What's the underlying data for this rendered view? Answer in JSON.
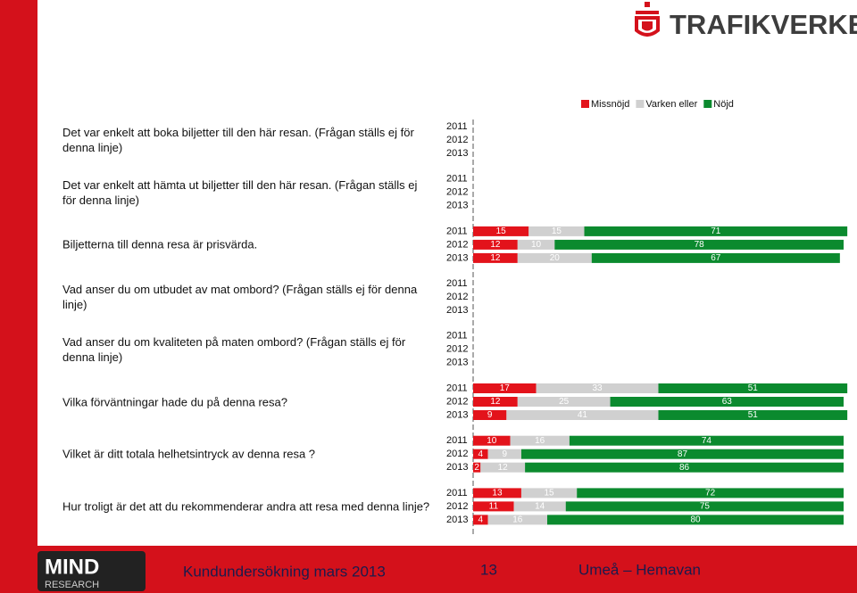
{
  "logo": "TRAFIKVERKET",
  "chart_data": {
    "type": "stacked-bar-horizontal",
    "questions": [
      "Det var enkelt att boka biljetter till den här resan. (Frågan ställs ej för denna linje)",
      "Det var enkelt att hämta ut biljetter till den här resan. (Frågan ställs ej för denna linje)",
      "Biljetterna till denna resa är prisvärda.",
      "Vad anser du om utbudet av mat ombord? (Frågan ställs ej för denna linje)",
      "Vad anser du om kvaliteten på maten ombord? (Frågan ställs ej för denna linje)",
      "Vilka förväntningar hade du på denna resa?",
      "Vilket är ditt totala helhetsintryck av denna resa ?",
      "Hur troligt är det att du rekommenderar andra att resa med denna linje?"
    ],
    "years": [
      "2011",
      "2012",
      "2013"
    ],
    "xlim": [
      0,
      100
    ],
    "series": [
      {
        "name": "Missnöjd",
        "color": "#e3131b",
        "values": [
          null,
          null,
          null,
          null,
          null,
          null,
          15,
          12,
          12,
          null,
          null,
          null,
          null,
          null,
          null,
          17,
          12,
          9,
          10,
          4,
          2,
          13,
          11,
          4
        ]
      },
      {
        "name": "Varken eller",
        "color": "#d0d0d0",
        "values": [
          null,
          null,
          null,
          null,
          null,
          null,
          15,
          10,
          20,
          null,
          null,
          null,
          null,
          null,
          null,
          33,
          25,
          41,
          16,
          9,
          12,
          15,
          14,
          16
        ]
      },
      {
        "name": "Nöjd",
        "color": "#0b8a2e",
        "values": [
          null,
          null,
          null,
          null,
          null,
          null,
          71,
          78,
          67,
          null,
          null,
          null,
          null,
          null,
          null,
          51,
          63,
          51,
          74,
          87,
          86,
          72,
          75,
          80
        ]
      }
    ]
  },
  "footer": {
    "brand": "MIND",
    "brand_sub": "RESEARCH",
    "text": "Kundundersökning mars 2013",
    "page": "13",
    "route": "Umeå – Hemavan"
  }
}
